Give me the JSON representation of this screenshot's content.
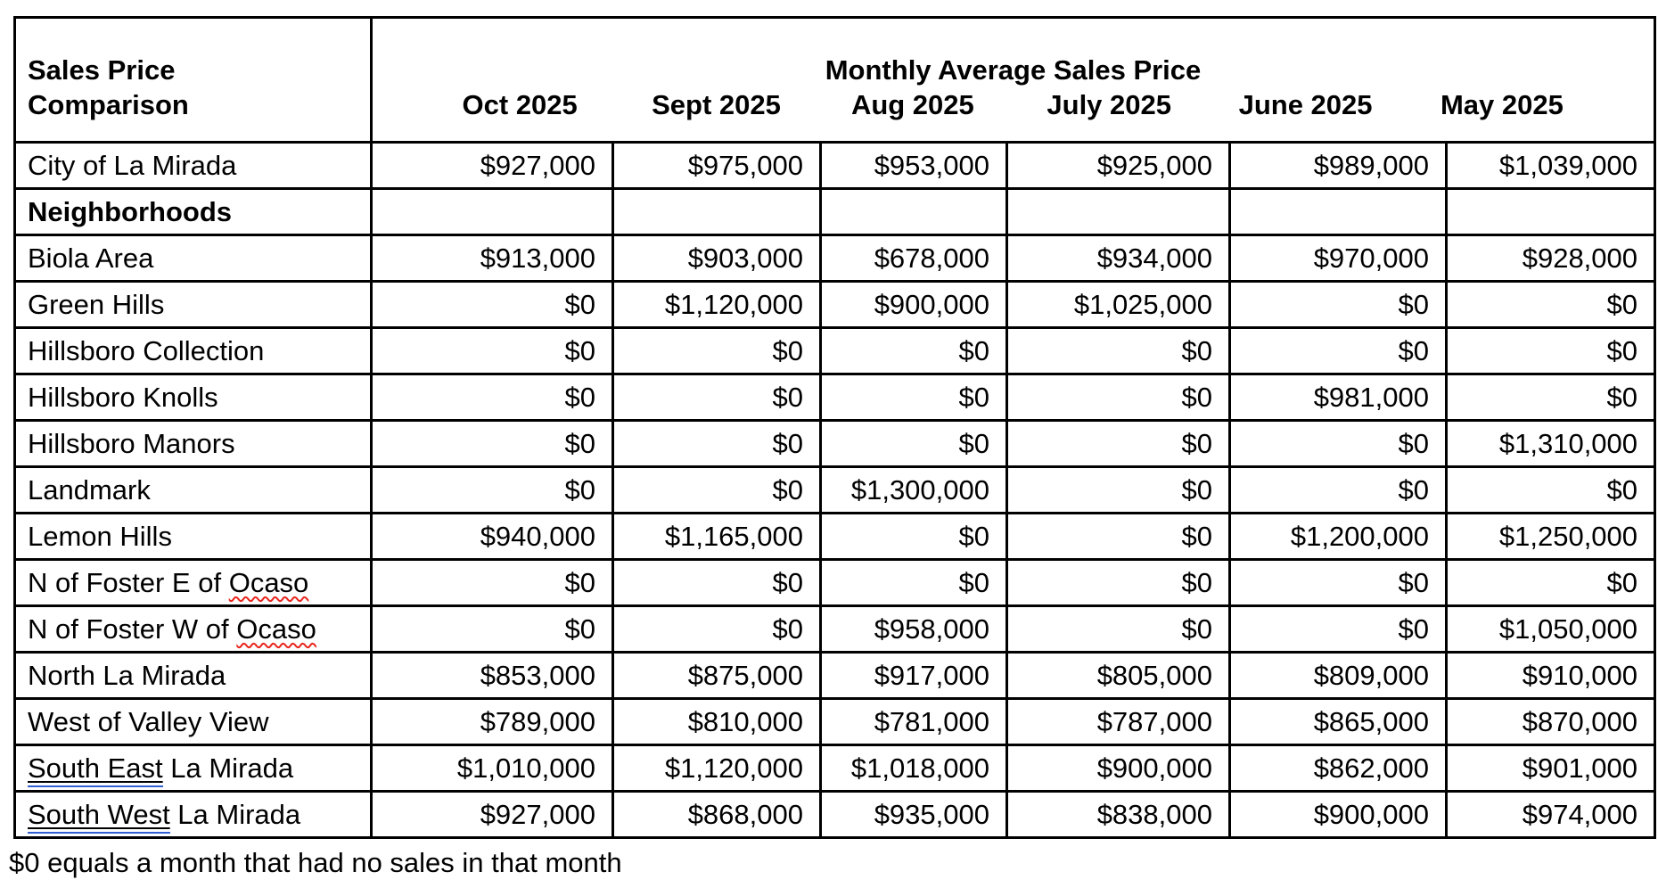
{
  "page": {
    "background": "#ffffff"
  },
  "table": {
    "corner_title_lines": [
      "Sales Price",
      "Comparison"
    ],
    "header_title": "Monthly Average Sales Price",
    "months": [
      "Oct 2025",
      "Sept 2025",
      "Aug 2025",
      "July 2025",
      "June 2025",
      "May 2025"
    ],
    "rows": [
      {
        "label_parts": [
          {
            "text": "City of La Mirada"
          }
        ],
        "values": [
          "$927,000",
          "$975,000",
          "$953,000",
          "$925,000",
          "$989,000",
          "$1,039,000"
        ]
      },
      {
        "label_parts": [
          {
            "text": "Neighborhoods"
          }
        ],
        "section_header": true,
        "values": [
          "",
          "",
          "",
          "",
          "",
          ""
        ]
      },
      {
        "label_parts": [
          {
            "text": "Biola Area"
          }
        ],
        "values": [
          "$913,000",
          "$903,000",
          "$678,000",
          "$934,000",
          "$970,000",
          "$928,000"
        ]
      },
      {
        "label_parts": [
          {
            "text": "Green Hills"
          }
        ],
        "values": [
          "$0",
          "$1,120,000",
          "$900,000",
          "$1,025,000",
          "$0",
          "$0"
        ]
      },
      {
        "label_parts": [
          {
            "text": "Hillsboro Collection"
          }
        ],
        "values": [
          "$0",
          "$0",
          "$0",
          "$0",
          "$0",
          "$0"
        ]
      },
      {
        "label_parts": [
          {
            "text": "Hillsboro Knolls"
          }
        ],
        "values": [
          "$0",
          "$0",
          "$0",
          "$0",
          "$981,000",
          "$0"
        ]
      },
      {
        "label_parts": [
          {
            "text": "Hillsboro Manors"
          }
        ],
        "values": [
          "$0",
          "$0",
          "$0",
          "$0",
          "$0",
          "$1,310,000"
        ]
      },
      {
        "label_parts": [
          {
            "text": "Landmark"
          }
        ],
        "values": [
          "$0",
          "$0",
          "$1,300,000",
          "$0",
          "$0",
          "$0"
        ]
      },
      {
        "label_parts": [
          {
            "text": "Lemon Hills"
          }
        ],
        "values": [
          "$940,000",
          "$1,165,000",
          "$0",
          "$0",
          "$1,200,000",
          "$1,250,000"
        ]
      },
      {
        "label_parts": [
          {
            "text": "N of Foster E of "
          },
          {
            "text": "Ocaso",
            "mark": "spelling"
          }
        ],
        "values": [
          "$0",
          "$0",
          "$0",
          "$0",
          "$0",
          "$0"
        ]
      },
      {
        "label_parts": [
          {
            "text": "N of Foster W of "
          },
          {
            "text": "Ocaso",
            "mark": "spelling"
          }
        ],
        "values": [
          "$0",
          "$0",
          "$958,000",
          "$0",
          "$0",
          "$1,050,000"
        ]
      },
      {
        "label_parts": [
          {
            "text": "North La Mirada"
          }
        ],
        "values": [
          "$853,000",
          "$875,000",
          "$917,000",
          "$805,000",
          "$809,000",
          "$910,000"
        ]
      },
      {
        "label_parts": [
          {
            "text": "West of Valley View"
          }
        ],
        "values": [
          "$789,000",
          "$810,000",
          "$781,000",
          "$787,000",
          "$865,000",
          "$870,000"
        ]
      },
      {
        "label_parts": [
          {
            "text": "South East",
            "mark": "grammar"
          },
          {
            "text": " La Mirada"
          }
        ],
        "values": [
          "$1,010,000",
          "$1,120,000",
          "$1,018,000",
          "$900,000",
          "$862,000",
          "$901,000"
        ]
      },
      {
        "label_parts": [
          {
            "text": "South West",
            "mark": "grammar"
          },
          {
            "text": " La Mirada"
          }
        ],
        "values": [
          "$927,000",
          "$868,000",
          "$935,000",
          "$838,000",
          "$900,000",
          "$974,000"
        ]
      }
    ],
    "footnote": "$0 equals a month that had no sales in that month"
  },
  "colors": {
    "text": "#000000",
    "border": "#000000",
    "spelling_underline": "#e8251d",
    "grammar_underline": "#2f5fd0"
  }
}
